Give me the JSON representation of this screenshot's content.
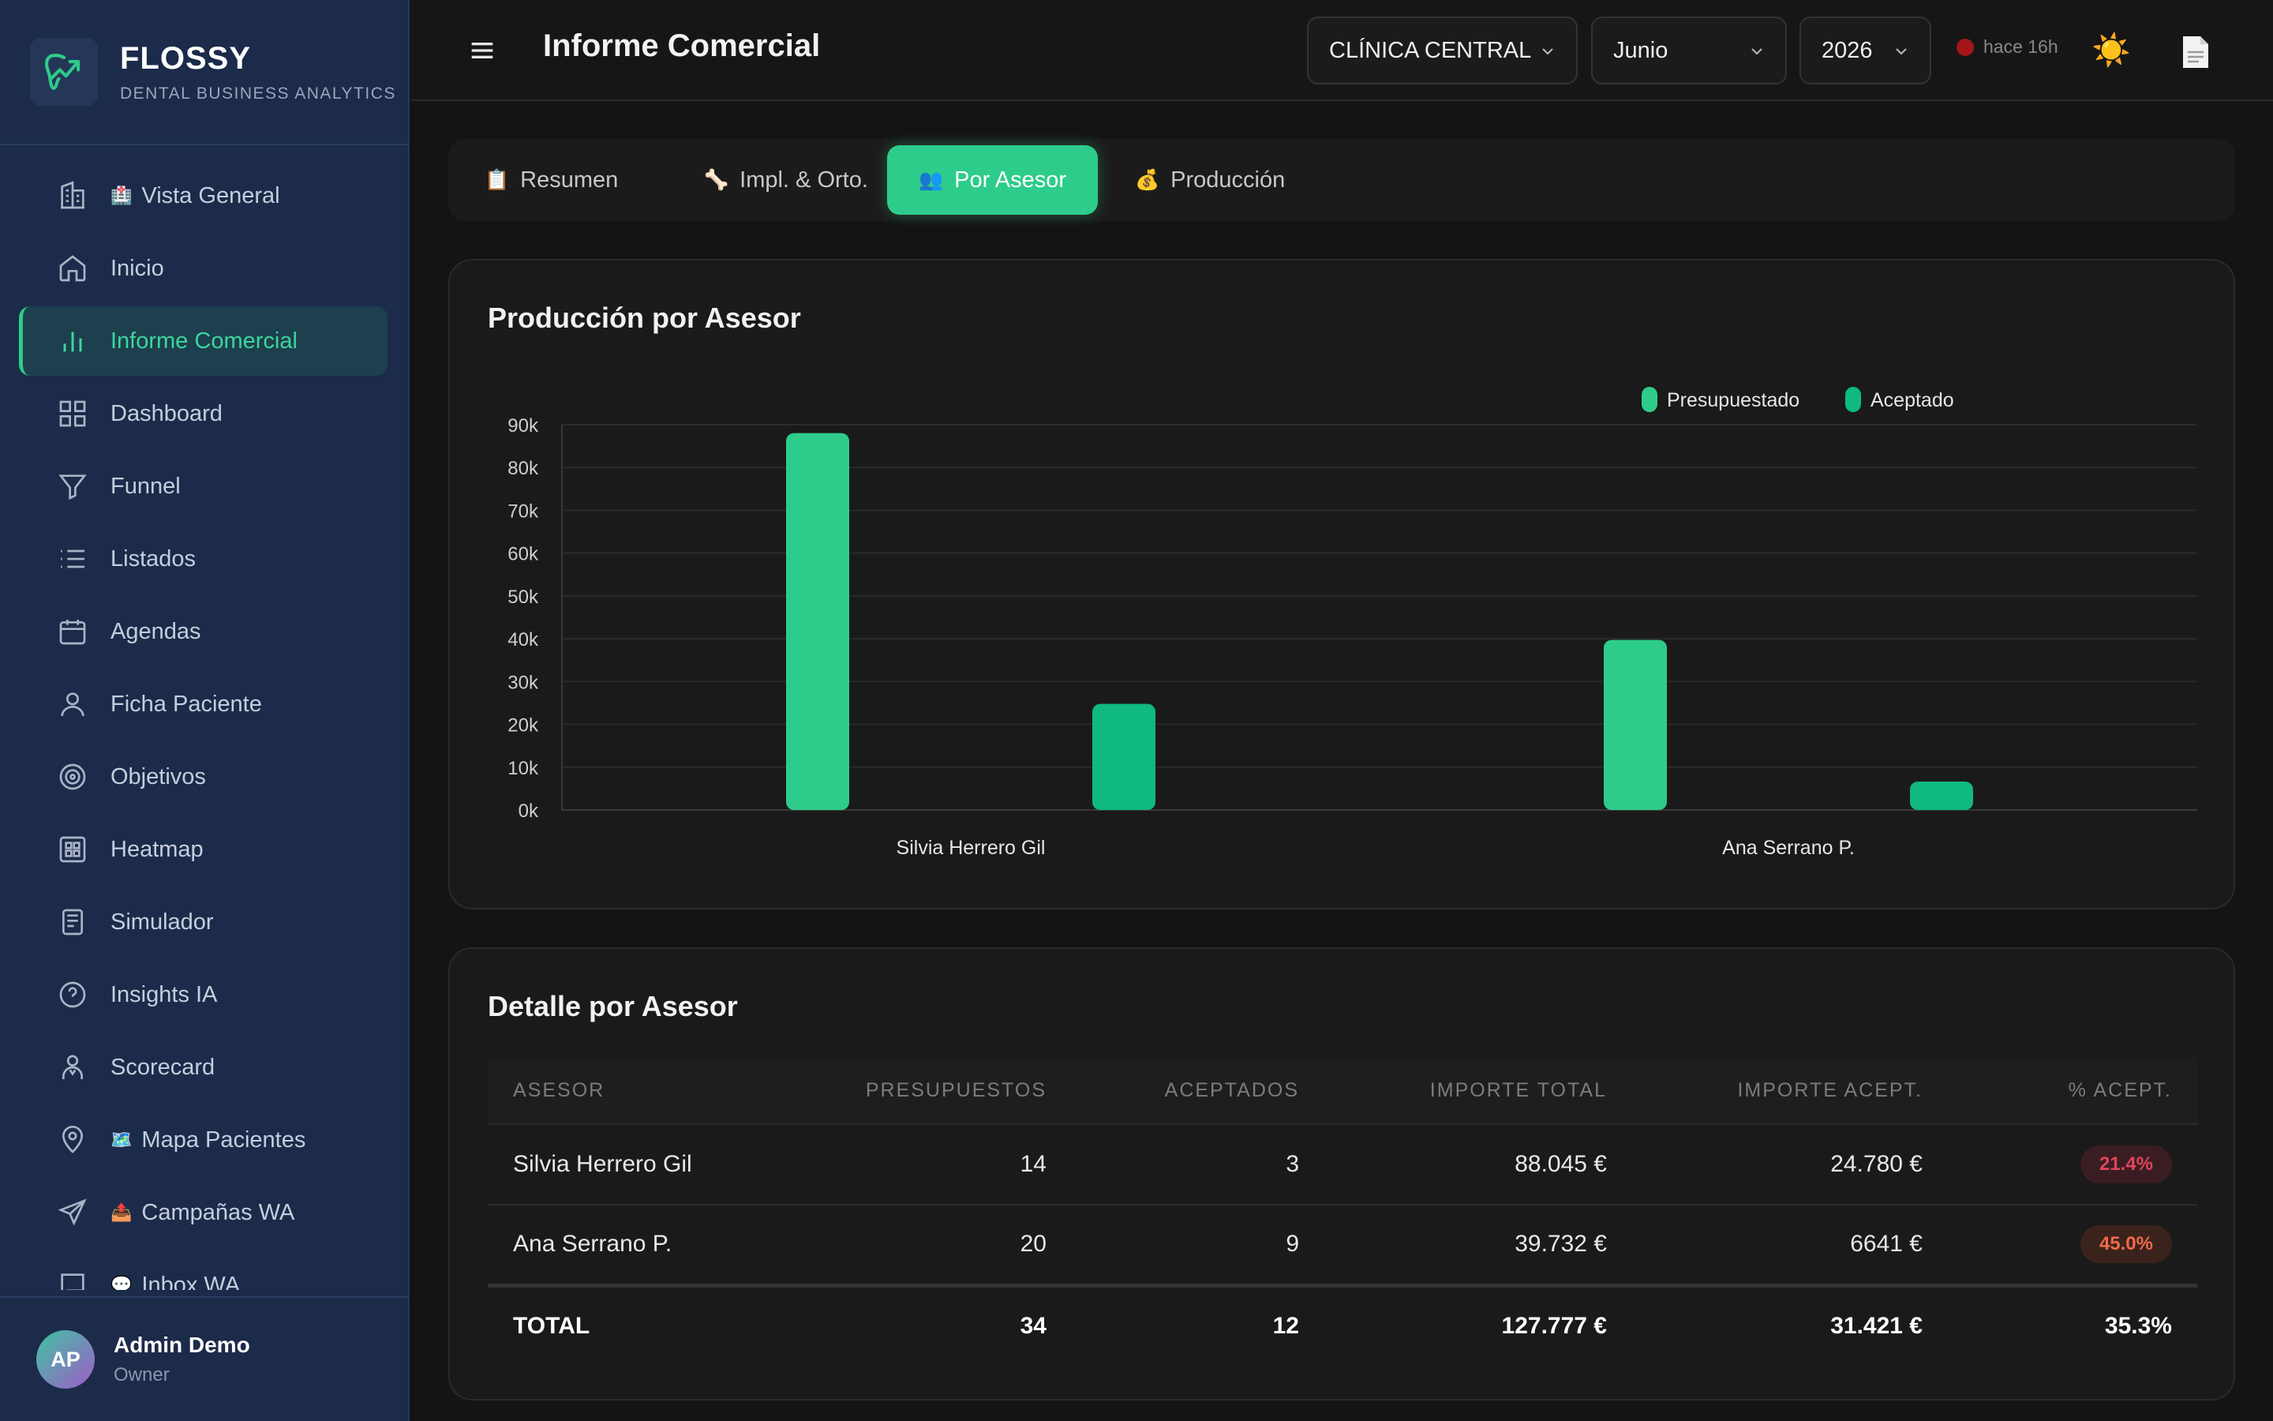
{
  "brand": {
    "name": "FLOSSY",
    "subtitle": "DENTAL BUSINESS ANALYTICS"
  },
  "sidebar": {
    "items": [
      {
        "label": "Vista General",
        "emoji": "🏥",
        "icon": "building-icon"
      },
      {
        "label": "Inicio",
        "icon": "home-icon"
      },
      {
        "label": "Informe Comercial",
        "icon": "bar-chart-icon",
        "active": true
      },
      {
        "label": "Dashboard",
        "icon": "grid-icon"
      },
      {
        "label": "Funnel",
        "icon": "funnel-icon"
      },
      {
        "label": "Listados",
        "icon": "list-icon"
      },
      {
        "label": "Agendas",
        "icon": "calendar-icon"
      },
      {
        "label": "Ficha Paciente",
        "icon": "user-icon"
      },
      {
        "label": "Objetivos",
        "icon": "target-icon"
      },
      {
        "label": "Heatmap",
        "icon": "heatmap-icon"
      },
      {
        "label": "Simulador",
        "icon": "calculator-icon"
      },
      {
        "label": "Insights IA",
        "icon": "help-circle-icon"
      },
      {
        "label": "Scorecard",
        "icon": "person-badge-icon"
      },
      {
        "label": "Mapa Pacientes",
        "emoji": "🗺️",
        "icon": "map-pin-icon"
      },
      {
        "label": "Campañas WA",
        "emoji": "📤",
        "icon": "send-icon"
      },
      {
        "label": "Inbox WA",
        "emoji": "💬",
        "icon": "message-icon"
      }
    ]
  },
  "user": {
    "initials": "AP",
    "name": "Admin Demo",
    "role": "Owner"
  },
  "header": {
    "title": "Informe Comercial",
    "clinic": "CLÍNICA CENTRAL",
    "month": "Junio",
    "year": "2026",
    "status": "hace 16h",
    "theme_icon": "☀️"
  },
  "tabs": [
    {
      "label": "Resumen",
      "emoji": "📋"
    },
    {
      "label": "Impl. & Orto.",
      "emoji": "🦴"
    },
    {
      "label": "Por Asesor",
      "emoji": "👥",
      "active": true
    },
    {
      "label": "Producción",
      "emoji": "💰"
    }
  ],
  "chart": {
    "title": "Producción por Asesor"
  },
  "chart_data": {
    "type": "bar",
    "categories": [
      "Silvia Herrero Gil",
      "Ana Serrano P."
    ],
    "series": [
      {
        "name": "Presupuestado",
        "values": [
          88045,
          39732
        ],
        "color": "#2ecc8a"
      },
      {
        "name": "Aceptado",
        "values": [
          24780,
          6641
        ],
        "color": "#10b981"
      }
    ],
    "ylim": [
      0,
      90000
    ],
    "yticks": [
      "0k",
      "10k",
      "20k",
      "30k",
      "40k",
      "50k",
      "60k",
      "70k",
      "80k",
      "90k"
    ],
    "legend": "top-center",
    "grid": true
  },
  "table": {
    "title": "Detalle por Asesor",
    "headers": [
      "ASESOR",
      "PRESUPUESTOS",
      "ACEPTADOS",
      "IMPORTE TOTAL",
      "IMPORTE ACEPT.",
      "% ACEPT."
    ],
    "rows": [
      {
        "asesor": "Silvia Herrero Gil",
        "presupuestos": "14",
        "aceptados": "3",
        "importe_total": "88.045 €",
        "importe_acept": "24.780 €",
        "pct": "21.4%",
        "pct_color": "#e0455a",
        "pct_bg": "#3a1d22"
      },
      {
        "asesor": "Ana Serrano P.",
        "presupuestos": "20",
        "aceptados": "9",
        "importe_total": "39.732 €",
        "importe_acept": "6641 €",
        "pct": "45.0%",
        "pct_color": "#ef6a4a",
        "pct_bg": "#3a231c"
      }
    ],
    "total": {
      "label": "TOTAL",
      "presupuestos": "34",
      "aceptados": "12",
      "importe_total": "127.777 €",
      "importe_acept": "31.421 €",
      "pct": "35.3%"
    }
  }
}
